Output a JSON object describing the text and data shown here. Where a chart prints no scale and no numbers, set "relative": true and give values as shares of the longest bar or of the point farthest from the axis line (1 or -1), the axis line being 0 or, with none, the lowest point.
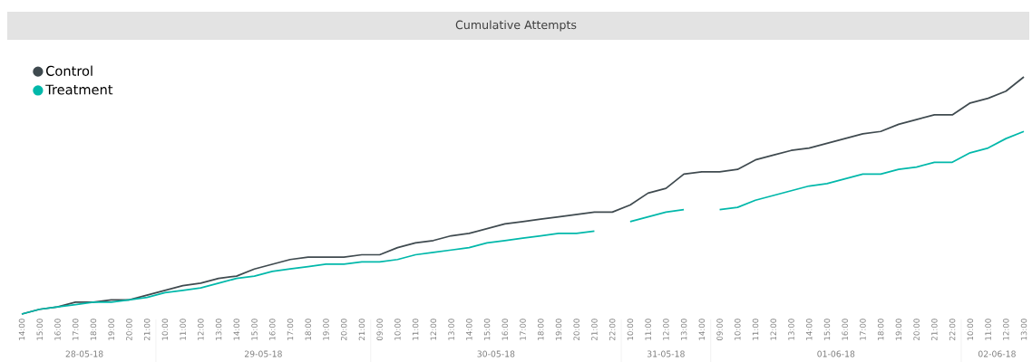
{
  "chart_data": {
    "type": "line",
    "title": "Cumulative Attempts",
    "relative": true,
    "legend": "top left",
    "categories": [
      "14:00",
      "15:00",
      "16:00",
      "17:00",
      "18:00",
      "19:00",
      "20:00",
      "21:00",
      "10:00",
      "11:00",
      "12:00",
      "13:00",
      "14:00",
      "15:00",
      "16:00",
      "17:00",
      "18:00",
      "19:00",
      "20:00",
      "21:00",
      "09:00",
      "10:00",
      "11:00",
      "12:00",
      "13:00",
      "14:00",
      "15:00",
      "16:00",
      "17:00",
      "18:00",
      "19:00",
      "20:00",
      "21:00",
      "22:00",
      "10:00",
      "11:00",
      "12:00",
      "13:00",
      "14:00",
      "09:00",
      "10:00",
      "11:00",
      "12:00",
      "13:00",
      "14:00",
      "15:00",
      "16:00",
      "17:00",
      "18:00",
      "19:00",
      "20:00",
      "21:00",
      "22:00",
      "10:00",
      "11:00",
      "12:00",
      "13:00"
    ],
    "annotations": [
      "28-05-18",
      "29-05-18",
      "30-05-18",
      "31-05-18",
      "01-06-18",
      "02-06-18"
    ],
    "series": [
      {
        "name": "Control",
        "color": "#3f4a4f",
        "values": [
          0,
          0.02,
          0.03,
          0.05,
          0.05,
          0.06,
          0.06,
          0.08,
          0.1,
          0.12,
          0.13,
          0.15,
          0.16,
          0.19,
          0.21,
          0.23,
          0.24,
          0.24,
          0.24,
          0.25,
          0.25,
          0.28,
          0.3,
          0.31,
          0.33,
          0.34,
          0.36,
          0.38,
          0.39,
          0.4,
          0.41,
          0.42,
          0.43,
          0.43,
          0.46,
          0.51,
          0.53,
          0.59,
          0.6,
          0.6,
          0.61,
          0.65,
          0.67,
          0.69,
          0.7,
          0.72,
          0.74,
          0.76,
          0.77,
          0.8,
          0.82,
          0.84,
          0.84,
          0.89,
          0.91,
          0.94,
          1
        ]
      },
      {
        "name": "Treatment",
        "color": "#01b8aa",
        "values": [
          0,
          0.02,
          0.03,
          0.04,
          0.05,
          0.05,
          0.06,
          0.07,
          0.09,
          0.1,
          0.11,
          0.13,
          0.15,
          0.16,
          0.18,
          0.19,
          0.2,
          0.21,
          0.21,
          0.22,
          0.22,
          0.23,
          0.25,
          0.26,
          0.27,
          0.28,
          0.3,
          0.31,
          0.32,
          0.33,
          0.34,
          0.34,
          0.35,
          null,
          0.39,
          0.41,
          0.43,
          0.44,
          null,
          0.44,
          0.45,
          0.48,
          0.5,
          0.52,
          0.54,
          0.55,
          0.57,
          0.59,
          0.59,
          0.61,
          0.62,
          0.64,
          0.64,
          0.68,
          0.7,
          0.74,
          0.77
        ]
      }
    ]
  }
}
